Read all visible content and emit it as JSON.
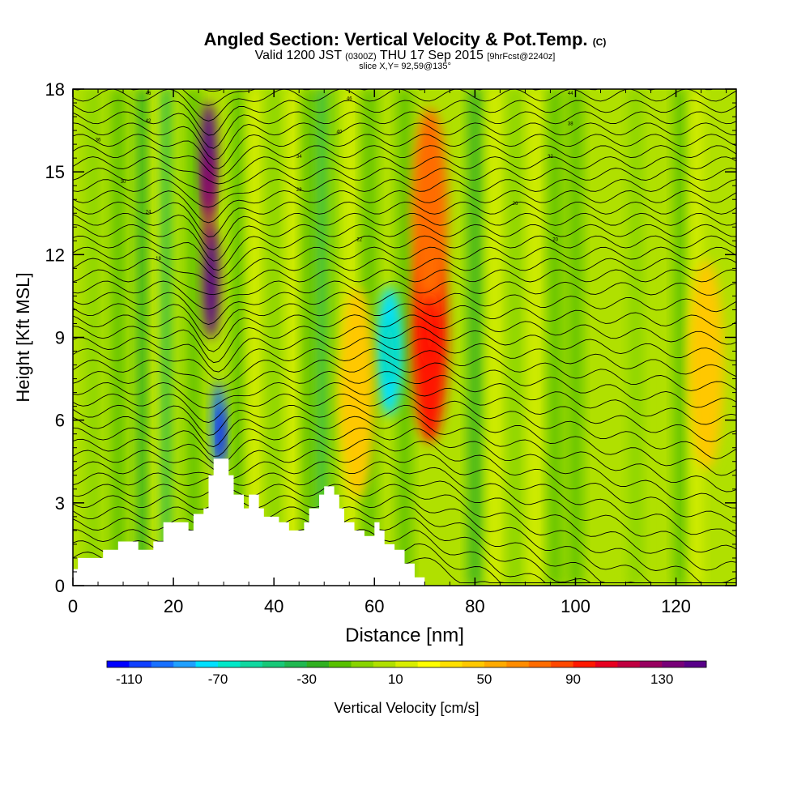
{
  "header": {
    "title": "Angled Section: Vertical Velocity & Pot.Temp.",
    "title_unit": "(C)",
    "valid_main": "Valid 1200 JST",
    "valid_z": "(0300Z)",
    "valid_date": "THU 17 Sep 2015",
    "forecast": "[9hrFcst@2240z]",
    "slice": "slice X,Y= 92,59@135°"
  },
  "chart_data": {
    "type": "heatmap",
    "xlabel": "Distance [nm]",
    "ylabel": "Height [Kft MSL]",
    "xlim": [
      0,
      132
    ],
    "ylim": [
      0,
      18
    ],
    "x_ticks": [
      0,
      20,
      40,
      60,
      80,
      100,
      120
    ],
    "y_ticks": [
      0,
      3,
      6,
      9,
      12,
      15,
      18
    ],
    "grid": false,
    "colorbar": {
      "label": "Vertical Velocity [cm/s]",
      "tick_labels": [
        "-110",
        "-70",
        "-30",
        "10",
        "50",
        "90",
        "130"
      ],
      "min": -120,
      "max": 150,
      "colors": [
        "#0000ff",
        "#1040ff",
        "#1870ff",
        "#20a0ff",
        "#00e0ff",
        "#00e8c8",
        "#10d8a0",
        "#18c878",
        "#20b850",
        "#30b020",
        "#58c000",
        "#88d400",
        "#b0e000",
        "#d8ee00",
        "#ffff00",
        "#ffe000",
        "#ffc800",
        "#ffaa00",
        "#ff8c00",
        "#ff6c00",
        "#ff4800",
        "#ff1800",
        "#e80020",
        "#c00040",
        "#980060",
        "#780078",
        "#580088"
      ]
    },
    "terrain_kft": [
      [
        0,
        0.6
      ],
      [
        1,
        1
      ],
      [
        6,
        1.3
      ],
      [
        9,
        1.6
      ],
      [
        13,
        1.3
      ],
      [
        16,
        1.6
      ],
      [
        18,
        2.3
      ],
      [
        22,
        2.3
      ],
      [
        23,
        2.0
      ],
      [
        24,
        2.6
      ],
      [
        26,
        2.8
      ],
      [
        27,
        4.0
      ],
      [
        28,
        4.6
      ],
      [
        31,
        4.0
      ],
      [
        32,
        3.3
      ],
      [
        34,
        2.8
      ],
      [
        35,
        3.3
      ],
      [
        37,
        2.8
      ],
      [
        38,
        2.5
      ],
      [
        41,
        2.3
      ],
      [
        43,
        2.0
      ],
      [
        46,
        2.3
      ],
      [
        47,
        2.8
      ],
      [
        49,
        3.3
      ],
      [
        50,
        3.6
      ],
      [
        52,
        3.3
      ],
      [
        53,
        2.8
      ],
      [
        54,
        2.3
      ],
      [
        56,
        2.0
      ],
      [
        58,
        1.8
      ],
      [
        60,
        2.3
      ],
      [
        61,
        2.0
      ],
      [
        62,
        1.5
      ],
      [
        64,
        1.3
      ],
      [
        66,
        0.8
      ],
      [
        68,
        0.3
      ],
      [
        69,
        0.3
      ]
    ],
    "features": [
      {
        "x": 27,
        "y": 15.5,
        "w": 140,
        "label": "updraft-core"
      },
      {
        "x": 27.5,
        "y": 11,
        "w": 140,
        "label": "updraft-core"
      },
      {
        "x": 29,
        "y": 5.8,
        "w": -100,
        "label": "downdraft-core"
      },
      {
        "x": 63,
        "y": 8.5,
        "w": -75,
        "label": "downdraft"
      },
      {
        "x": 71,
        "y": 9,
        "w": 90,
        "label": "updraft"
      },
      {
        "x": 71,
        "y": 13.5,
        "w": 70,
        "label": "updraft"
      },
      {
        "x": 56.5,
        "y": 7,
        "w": 40,
        "label": "updraft"
      },
      {
        "x": 126,
        "y": 8,
        "w": 45,
        "label": "updraft"
      }
    ],
    "isentrope_labels": [
      "46",
      "46",
      "44",
      "42",
      "40",
      "38",
      "36",
      "34",
      "32",
      "30",
      "28",
      "26",
      "24",
      "22",
      "20",
      "18"
    ]
  }
}
